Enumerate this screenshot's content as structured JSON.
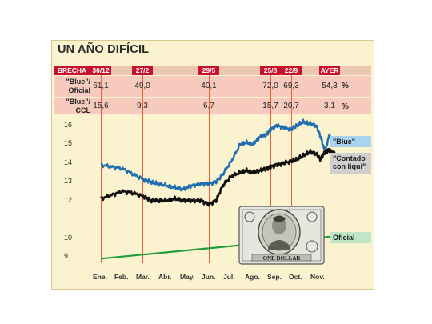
{
  "title": "UN AÑO DIFÍCIL",
  "table": {
    "header_label": "BRECHA",
    "dates": [
      "30/12",
      "27/2",
      "29/5",
      "25/8",
      "22/9",
      "AYER"
    ],
    "rows": [
      {
        "label_line1": "\"Blue\"/",
        "label_line2": "Oficial",
        "values": [
          "61,1",
          "49,0",
          "40,1",
          "72,0",
          "69,3",
          "54,3"
        ],
        "unit": "%"
      },
      {
        "label_line1": "\"Blue\"/",
        "label_line2": "CCL",
        "values": [
          "15,6",
          "9,3",
          "6,7",
          "15,7",
          "20,7",
          "3,1"
        ],
        "unit": "%"
      }
    ]
  },
  "legend": {
    "blue": "\"Blue\"",
    "ccl_line1": "\"Contado",
    "ccl_line2": "con liqui\"",
    "oficial": "Oficial"
  },
  "colors": {
    "blue": "#1f6fb0",
    "ccl": "#111111",
    "oficial": "#1f9e3a",
    "accent_red": "#c8102e",
    "marker_line": "#e8613a"
  },
  "image": "dollar-bill-icon",
  "chart_data": {
    "type": "line",
    "x_labels": [
      "Ene.",
      "Feb.",
      "Mar.",
      "Abr.",
      "May.",
      "Jun.",
      "Jul.",
      "Ago.",
      "Sep.",
      "Oct.",
      "Nov."
    ],
    "y_ticks": [
      9,
      10,
      12,
      13,
      14,
      15,
      16
    ],
    "marker_months": [
      0.0,
      1.9,
      4.95,
      7.8,
      8.75,
      10.5
    ],
    "series": [
      {
        "name": "\"Blue\"",
        "x": [
          0.0,
          0.5,
          1.0,
          1.5,
          2.0,
          2.3,
          2.6,
          3.0,
          3.4,
          3.8,
          4.2,
          4.6,
          4.95,
          5.3,
          5.6,
          6.0,
          6.4,
          6.7,
          7.0,
          7.3,
          7.6,
          7.8,
          8.1,
          8.4,
          8.75,
          9.0,
          9.3,
          9.6,
          9.9,
          10.1,
          10.3,
          10.5,
          10.6,
          10.75
        ],
        "y": [
          13.9,
          13.8,
          13.7,
          13.4,
          13.1,
          13.0,
          12.9,
          12.8,
          12.7,
          12.6,
          12.8,
          12.9,
          12.9,
          13.0,
          13.4,
          14.1,
          15.0,
          15.1,
          15.0,
          15.4,
          15.5,
          15.8,
          16.0,
          15.9,
          15.8,
          16.0,
          16.2,
          16.1,
          16.0,
          15.4,
          14.6,
          15.5,
          15.2,
          15.3
        ]
      },
      {
        "name": "\"Contado con liqui\"",
        "x": [
          0.0,
          0.5,
          1.0,
          1.5,
          2.0,
          2.3,
          2.6,
          3.0,
          3.4,
          3.8,
          4.2,
          4.6,
          4.95,
          5.3,
          5.6,
          6.0,
          6.4,
          6.7,
          7.0,
          7.3,
          7.6,
          7.8,
          8.1,
          8.4,
          8.75,
          9.0,
          9.3,
          9.6,
          9.9,
          10.1,
          10.3,
          10.5,
          10.6,
          10.75
        ],
        "y": [
          12.1,
          12.3,
          12.5,
          12.4,
          12.2,
          12.0,
          12.0,
          12.0,
          12.1,
          12.0,
          12.0,
          12.0,
          11.8,
          12.0,
          12.8,
          13.3,
          13.5,
          13.6,
          13.5,
          13.6,
          13.7,
          13.8,
          13.9,
          14.0,
          14.1,
          14.2,
          14.4,
          14.6,
          14.5,
          14.2,
          14.6,
          14.7,
          14.6,
          14.5
        ]
      },
      {
        "name": "Oficial",
        "x": [
          0.0,
          10.75
        ],
        "y": [
          8.9,
          10.1
        ]
      }
    ]
  }
}
